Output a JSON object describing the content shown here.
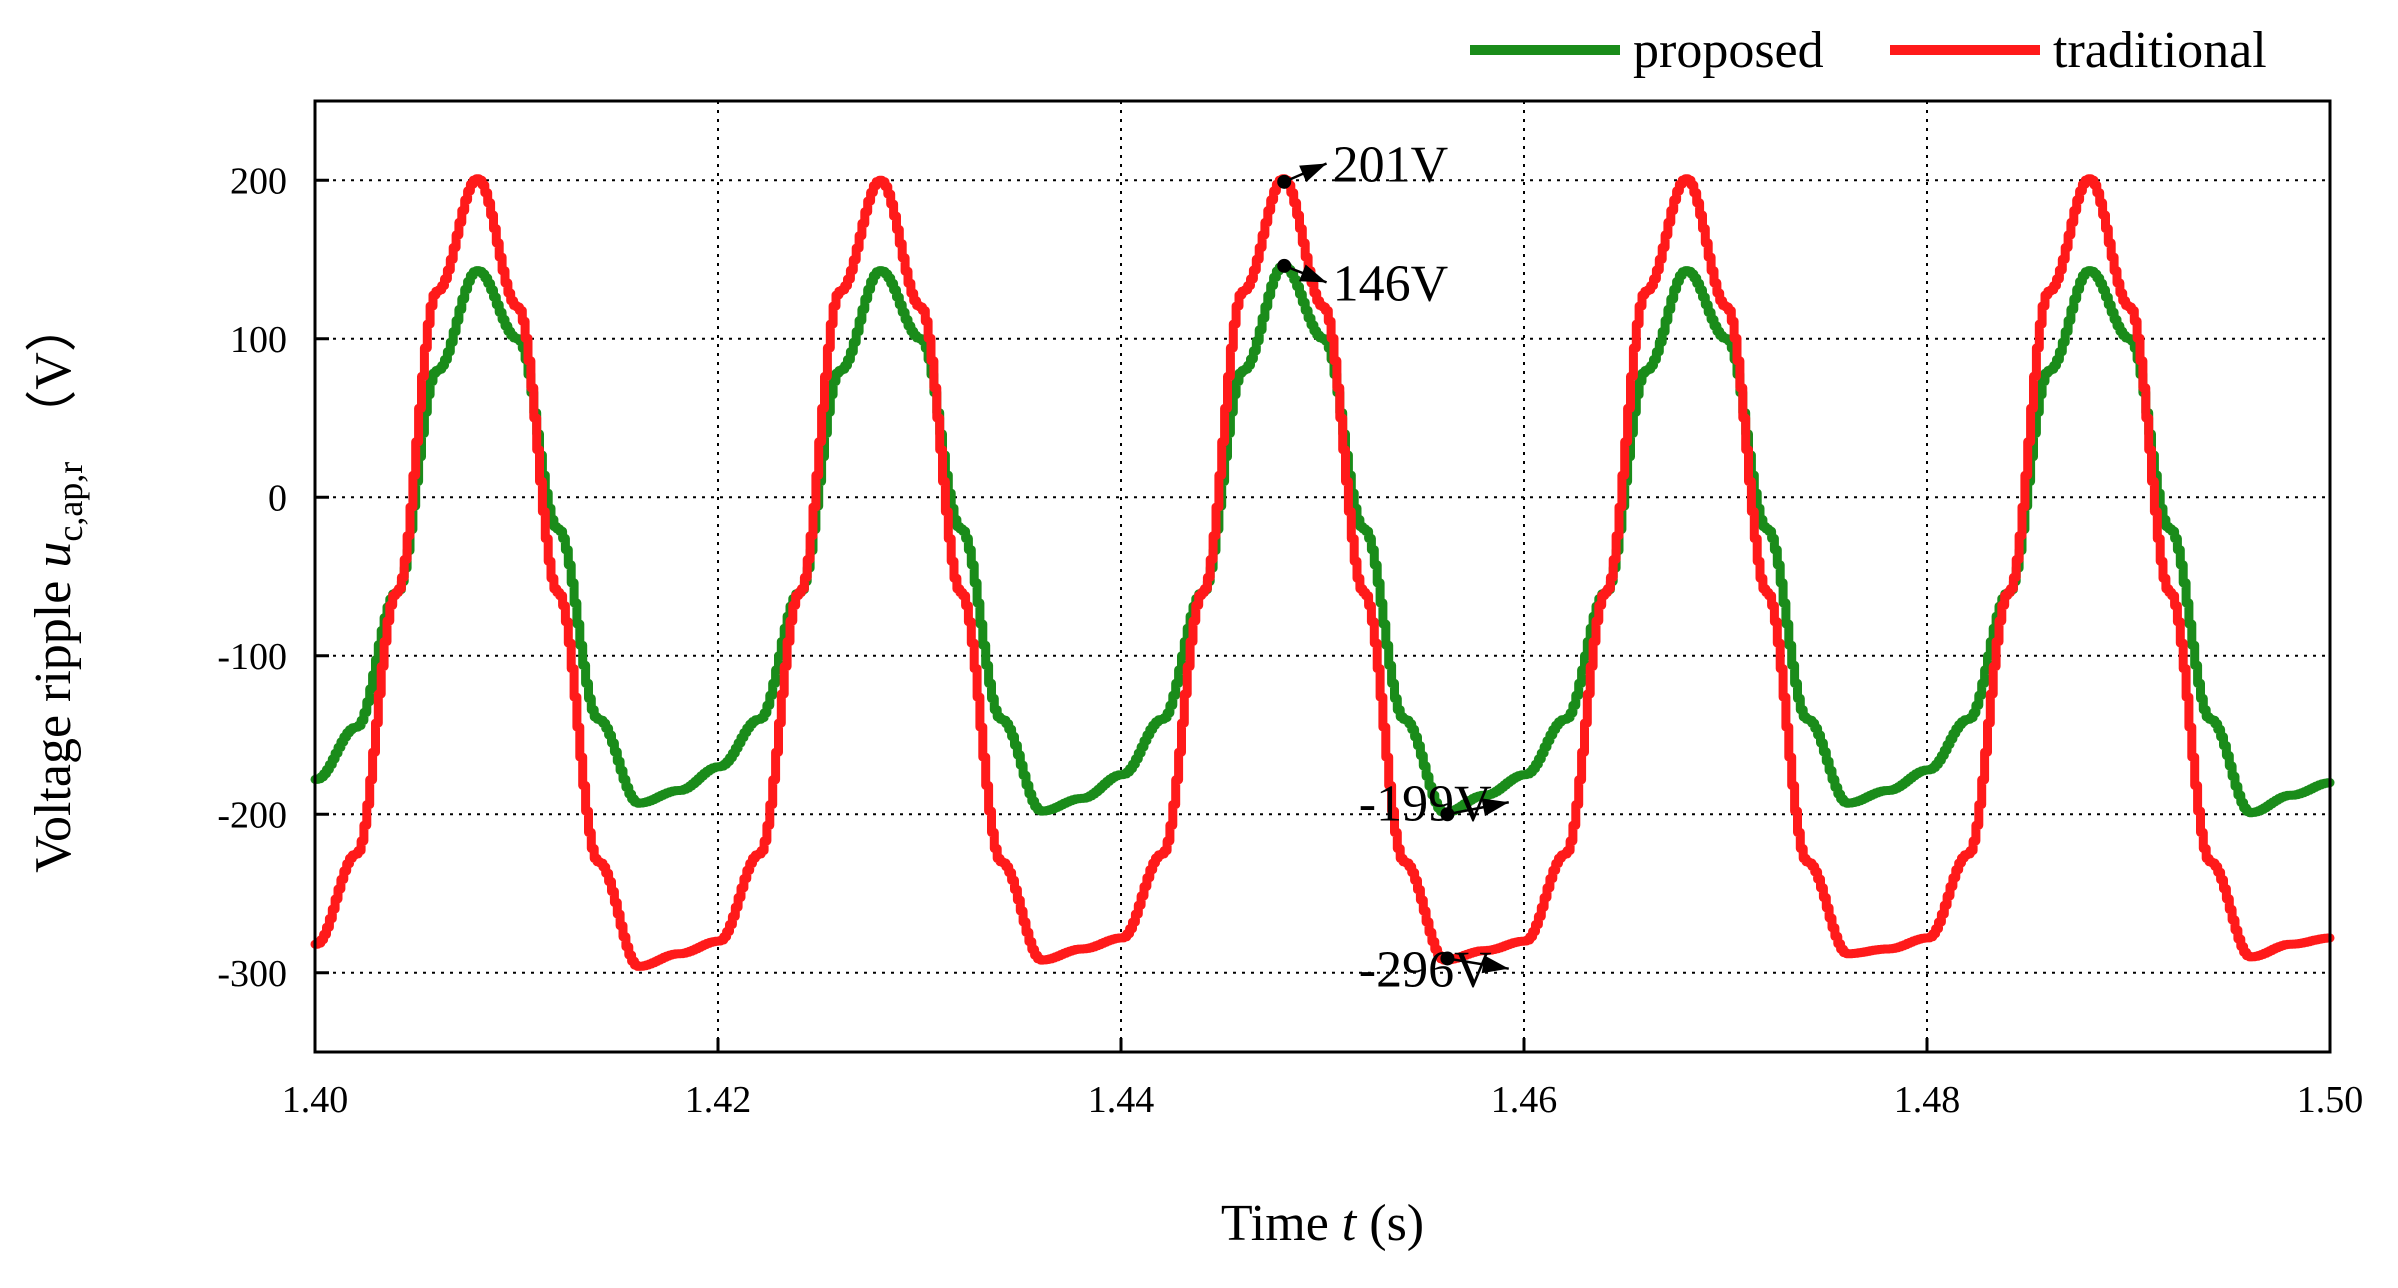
{
  "chart_data": {
    "type": "line",
    "xlabel": {
      "prefix": "Time ",
      "var": "t",
      "suffix": " (s)"
    },
    "ylabel": {
      "prefix": "Voltage ripple ",
      "var": "u",
      "sub": "c,ap,r",
      "unit": "（V）"
    },
    "xlim": [
      1.4,
      1.5
    ],
    "ylim": [
      -350,
      250
    ],
    "xticks": [
      1.4,
      1.42,
      1.44,
      1.46,
      1.48,
      1.5
    ],
    "xtick_labels": [
      "1.40",
      "1.42",
      "1.44",
      "1.46",
      "1.48",
      "1.50"
    ],
    "yticks": [
      -300,
      -200,
      -100,
      0,
      100,
      200
    ],
    "ytick_labels": [
      "-300",
      "-200",
      "-100",
      "0",
      "100",
      "200"
    ],
    "grid": true,
    "legend_position": "top-right, above plot",
    "series": [
      {
        "name": "proposed",
        "color": "#1a8c1a",
        "x": [
          1.4,
          1.402,
          1.404,
          1.406,
          1.408,
          1.41,
          1.412,
          1.414,
          1.416,
          1.418,
          1.42,
          1.422,
          1.424,
          1.426,
          1.428,
          1.43,
          1.432,
          1.434,
          1.436,
          1.438,
          1.44,
          1.442,
          1.444,
          1.446,
          1.448,
          1.45,
          1.452,
          1.454,
          1.456,
          1.458,
          1.46,
          1.462,
          1.464,
          1.466,
          1.468,
          1.47,
          1.472,
          1.474,
          1.476,
          1.478,
          1.48,
          1.482,
          1.484,
          1.486,
          1.488,
          1.49,
          1.492,
          1.494,
          1.496,
          1.498,
          1.5
        ],
        "y": [
          -178,
          -145,
          -60,
          80,
          143,
          100,
          -20,
          -140,
          -193,
          -185,
          -170,
          -140,
          -60,
          80,
          143,
          100,
          -20,
          -140,
          -198,
          -190,
          -175,
          -140,
          -60,
          80,
          146,
          100,
          -20,
          -140,
          -199,
          -188,
          -175,
          -140,
          -60,
          80,
          143,
          100,
          -20,
          -140,
          -193,
          -185,
          -172,
          -140,
          -60,
          80,
          143,
          100,
          -20,
          -140,
          -199,
          -188,
          -180
        ]
      },
      {
        "name": "traditional",
        "color": "#ff1a1a",
        "x": [
          1.4,
          1.402,
          1.404,
          1.406,
          1.408,
          1.41,
          1.412,
          1.414,
          1.416,
          1.418,
          1.42,
          1.422,
          1.424,
          1.426,
          1.428,
          1.43,
          1.432,
          1.434,
          1.436,
          1.438,
          1.44,
          1.442,
          1.444,
          1.446,
          1.448,
          1.45,
          1.452,
          1.454,
          1.456,
          1.458,
          1.46,
          1.462,
          1.464,
          1.466,
          1.468,
          1.47,
          1.472,
          1.474,
          1.476,
          1.478,
          1.48,
          1.482,
          1.484,
          1.486,
          1.488,
          1.49,
          1.492,
          1.494,
          1.496,
          1.498,
          1.5
        ],
        "y": [
          -282,
          -225,
          -60,
          130,
          201,
          120,
          -60,
          -230,
          -296,
          -288,
          -280,
          -225,
          -60,
          130,
          200,
          120,
          -60,
          -230,
          -292,
          -285,
          -278,
          -225,
          -60,
          130,
          201,
          120,
          -60,
          -230,
          -292,
          -286,
          -280,
          -225,
          -60,
          130,
          201,
          120,
          -60,
          -230,
          -288,
          -285,
          -278,
          -225,
          -60,
          130,
          201,
          120,
          -60,
          -230,
          -290,
          -282,
          -278
        ]
      }
    ],
    "annotations": [
      {
        "label": "201V",
        "x": 1.4481,
        "y": 199,
        "text_x": 1.4505,
        "text_y": 203
      },
      {
        "label": "146V",
        "x": 1.4481,
        "y": 146,
        "text_x": 1.4505,
        "text_y": 128
      },
      {
        "label": "-199V",
        "x": 1.4562,
        "y": -200,
        "text_x": 1.4518,
        "text_y": -200
      },
      {
        "label": "-296V",
        "x": 1.4562,
        "y": -291,
        "text_x": 1.4518,
        "text_y": -305
      }
    ]
  }
}
